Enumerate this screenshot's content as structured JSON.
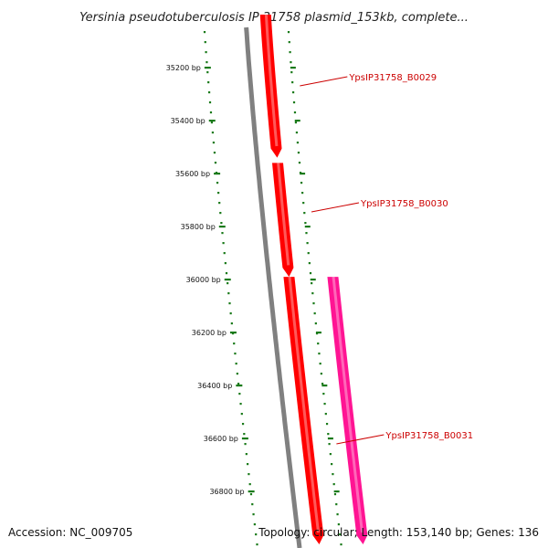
{
  "title": "Yersinia pseudotuberculosis IP 31758 plasmid_153kb, complete...",
  "accession": "Accession: NC_009705",
  "summary": "Topology: circular; Length: 153,140 bp; Genes: 136",
  "ticks": [
    {
      "bp": 35200,
      "label": "35200 bp"
    },
    {
      "bp": 35400,
      "label": "35400 bp"
    },
    {
      "bp": 35600,
      "label": "35600 bp"
    },
    {
      "bp": 35800,
      "label": "35800 bp"
    },
    {
      "bp": 36000,
      "label": "36000 bp"
    },
    {
      "bp": 36200,
      "label": "36200 bp"
    },
    {
      "bp": 36400,
      "label": "36400 bp"
    },
    {
      "bp": 36600,
      "label": "36600 bp"
    },
    {
      "bp": 36800,
      "label": "36800 bp"
    }
  ],
  "genes": [
    {
      "label": "YpsIP31758_B0029",
      "start": 35000,
      "end": 35540,
      "strand": "forward",
      "track": "inner",
      "color": "#ff0000"
    },
    {
      "label": "YpsIP31758_B0030",
      "start": 35560,
      "end": 35990,
      "strand": "forward",
      "track": "inner",
      "color": "#ff0000"
    },
    {
      "label": "",
      "start": 35990,
      "end": 37000,
      "strand": "forward",
      "track": "inner",
      "color": "#ff0000"
    },
    {
      "label": "YpsIP31758_B0031",
      "start": 35990,
      "end": 37000,
      "strand": "forward",
      "track": "outer",
      "color": "#ff1493"
    }
  ],
  "colors": {
    "backbone": "#808080",
    "dots": "#1a7a1a",
    "tick": "#1a7a1a",
    "label_line": "#cc0000"
  }
}
